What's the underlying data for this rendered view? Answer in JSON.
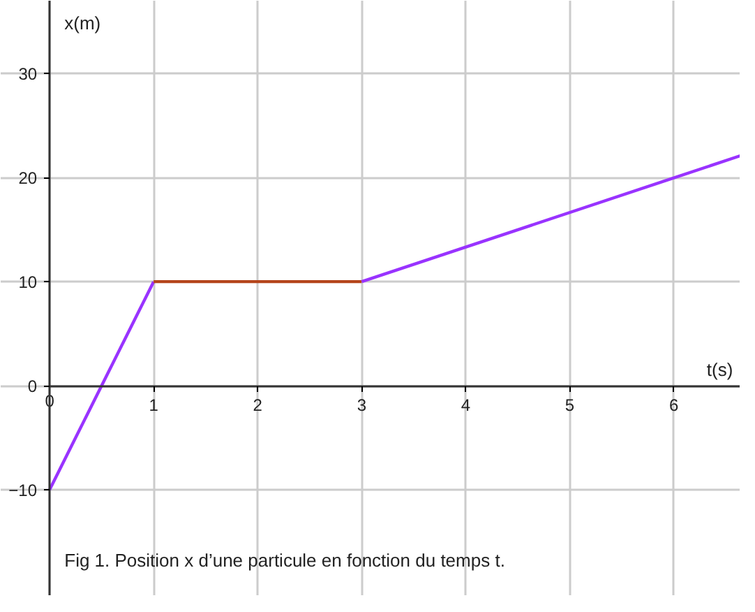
{
  "chart_data": {
    "type": "line",
    "xlabel": "t(s)",
    "ylabel": "x(m)",
    "series": [
      {
        "color": "#9933ff",
        "x": [
          0,
          1
        ],
        "values": [
          -10,
          10
        ]
      },
      {
        "color": "#b5451b",
        "x": [
          1,
          3
        ],
        "values": [
          10,
          10
        ]
      },
      {
        "color": "#9933ff",
        "x": [
          3,
          6.64
        ],
        "values": [
          10,
          22.1
        ]
      }
    ],
    "xlim": [
      -0.47,
      6.64
    ],
    "ylim": [
      -20.2,
      37
    ],
    "xticks": [
      0,
      1,
      2,
      3,
      4,
      5,
      6
    ],
    "yticks": [
      -10,
      0,
      10,
      20,
      30
    ],
    "grid": true,
    "line_style": "solid",
    "marker": "none",
    "annotations": [
      "Fig 1. Position x d’une particule en fonction du temps t."
    ]
  }
}
